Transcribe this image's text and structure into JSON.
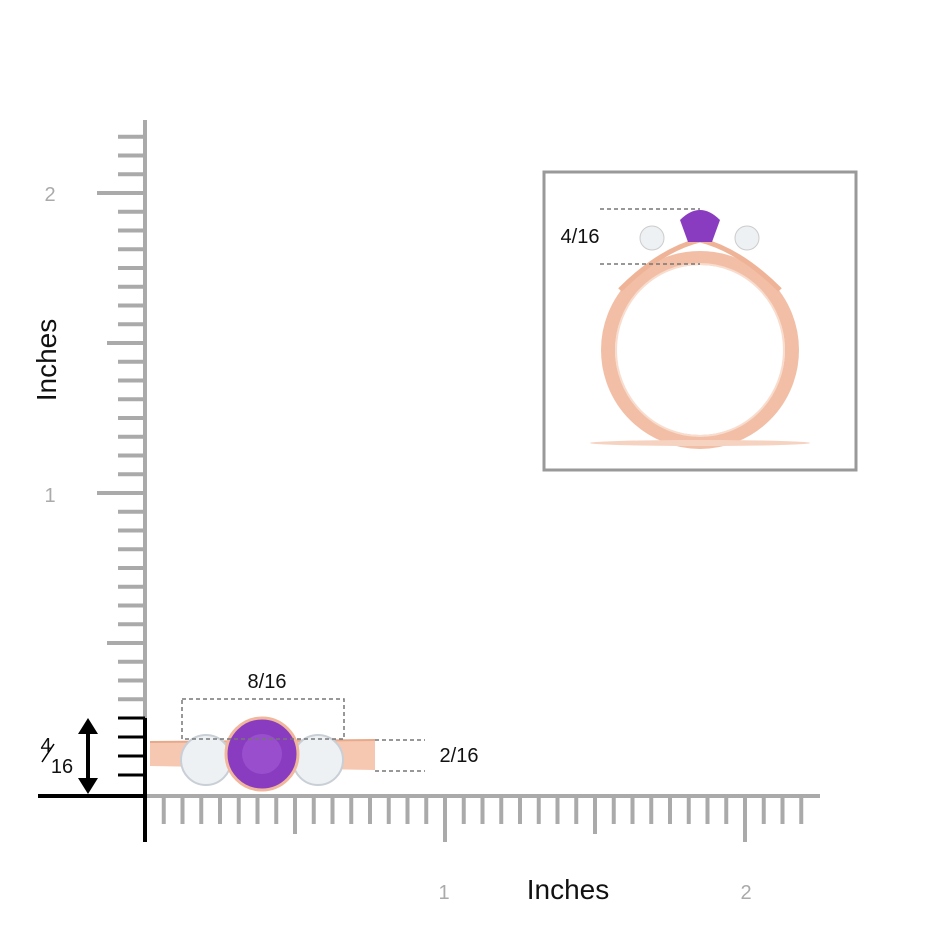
{
  "ruler": {
    "y_labels": [
      "1",
      "2"
    ],
    "y_title": "Inches",
    "x_labels": [
      "1",
      "2"
    ],
    "x_title": "Inches"
  },
  "dimensions": {
    "width": "8/16",
    "band_height": "2/16",
    "side_height": {
      "numerator": "4",
      "denominator": "16"
    },
    "inset_height": "4/16"
  }
}
